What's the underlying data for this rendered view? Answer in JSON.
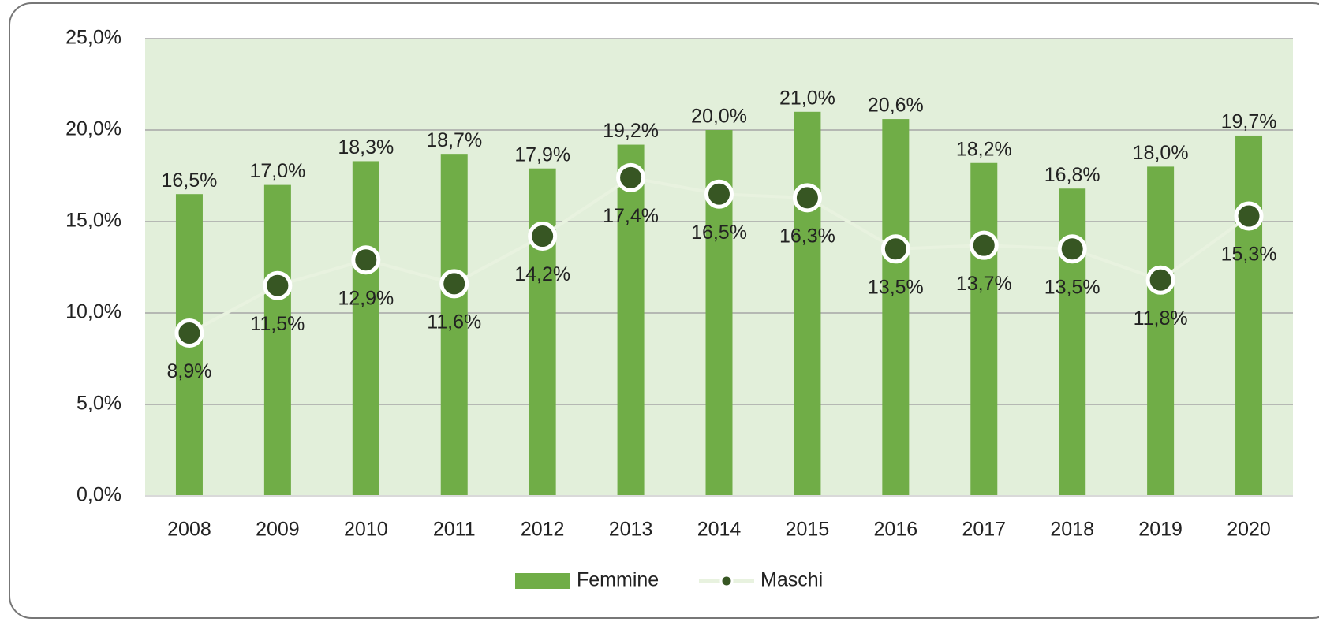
{
  "chart_data": {
    "type": "bar_line",
    "categories": [
      "2008",
      "2009",
      "2010",
      "2011",
      "2012",
      "2013",
      "2014",
      "2015",
      "2016",
      "2017",
      "2018",
      "2019",
      "2020"
    ],
    "series": [
      {
        "name": "Femmine",
        "type": "bar",
        "color": "#70ad47",
        "values": [
          16.5,
          17.0,
          18.3,
          18.7,
          17.9,
          19.2,
          20.0,
          21.0,
          20.6,
          18.2,
          16.8,
          18.0,
          19.7
        ],
        "value_labels": [
          "16,5%",
          "17,0%",
          "18,3%",
          "18,7%",
          "17,9%",
          "19,2%",
          "20,0%",
          "21,0%",
          "20,6%",
          "18,2%",
          "16,8%",
          "18,0%",
          "19,7%"
        ]
      },
      {
        "name": "Maschi",
        "type": "line",
        "color": "#375623",
        "line_color": "#e8f2df",
        "values": [
          8.9,
          11.5,
          12.9,
          11.6,
          14.2,
          17.4,
          16.5,
          16.3,
          13.5,
          13.7,
          13.5,
          11.8,
          15.3
        ],
        "value_labels": [
          "8,9%",
          "11,5%",
          "12,9%",
          "11,6%",
          "14,2%",
          "17,4%",
          "16,5%",
          "16,3%",
          "13,5%",
          "13,7%",
          "13,5%",
          "11,8%",
          "15,3%"
        ]
      }
    ],
    "ylim": [
      0,
      25
    ],
    "yticks": [
      {
        "value": 0,
        "label": "0,0%"
      },
      {
        "value": 5,
        "label": "5,0%"
      },
      {
        "value": 10,
        "label": "10,0%"
      },
      {
        "value": 15,
        "label": "15,0%"
      },
      {
        "value": 20,
        "label": "20,0%"
      },
      {
        "value": 25,
        "label": "25,0%"
      }
    ],
    "grid": true,
    "plot_background": "#e2efda",
    "legend": "bottom"
  }
}
